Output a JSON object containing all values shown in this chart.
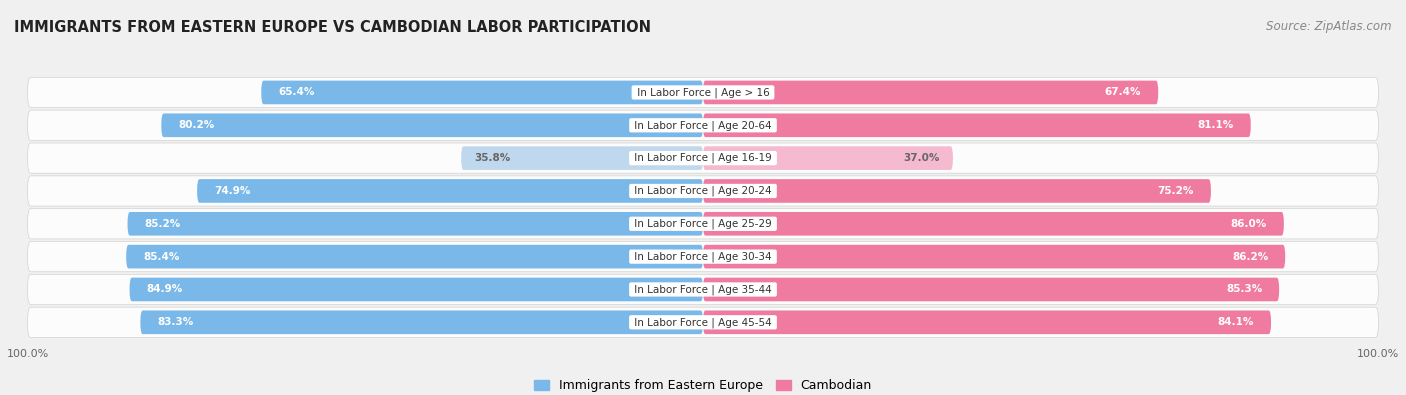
{
  "title": "IMMIGRANTS FROM EASTERN EUROPE VS CAMBODIAN LABOR PARTICIPATION",
  "source": "Source: ZipAtlas.com",
  "categories": [
    "In Labor Force | Age > 16",
    "In Labor Force | Age 20-64",
    "In Labor Force | Age 16-19",
    "In Labor Force | Age 20-24",
    "In Labor Force | Age 25-29",
    "In Labor Force | Age 30-34",
    "In Labor Force | Age 35-44",
    "In Labor Force | Age 45-54"
  ],
  "eastern_europe_values": [
    65.4,
    80.2,
    35.8,
    74.9,
    85.2,
    85.4,
    84.9,
    83.3
  ],
  "cambodian_values": [
    67.4,
    81.1,
    37.0,
    75.2,
    86.0,
    86.2,
    85.3,
    84.1
  ],
  "eastern_europe_color": "#79B8E8",
  "eastern_europe_color_light": "#C0D8EE",
  "cambodian_color": "#F07BA0",
  "cambodian_color_light": "#F5BAD0",
  "text_white": "#FFFFFF",
  "text_dark": "#666666",
  "background_color": "#F0F0F0",
  "row_light": "#E8E8E8",
  "row_dark": "#DCDCDC",
  "legend_ee": "Immigrants from Eastern Europe",
  "legend_cam": "Cambodian",
  "max_value": 100.0,
  "bar_height": 0.72,
  "label_fontsize": 7.5,
  "value_fontsize": 7.5,
  "title_fontsize": 10.5,
  "source_fontsize": 8.5
}
